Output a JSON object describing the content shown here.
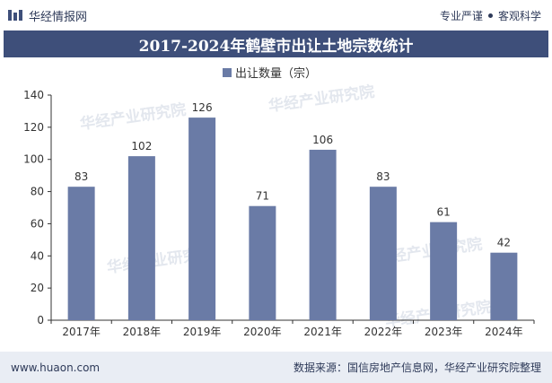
{
  "header": {
    "brand": "华经情报网",
    "slogan_left": "专业严谨",
    "slogan_right": "客观科学"
  },
  "title": "2017-2024年鹤壁市出让土地宗数统计",
  "chart_data": {
    "type": "bar",
    "title": "2017-2024年鹤壁市出让土地宗数统计",
    "categories": [
      "2017年",
      "2018年",
      "2019年",
      "2020年",
      "2021年",
      "2022年",
      "2023年",
      "2024年"
    ],
    "series": [
      {
        "name": "出让数量（宗）",
        "values": [
          83,
          102,
          126,
          71,
          106,
          83,
          61,
          42
        ]
      }
    ],
    "ylim": [
      0,
      140
    ],
    "yticks": [
      0,
      20,
      40,
      60,
      80,
      100,
      120,
      140
    ],
    "legend": "top-center",
    "grid": false,
    "colors": {
      "bar": "#6a7ba6",
      "axis": "#333333"
    }
  },
  "watermark": "华经产业研究院",
  "footer": {
    "url": "www.huaon.com",
    "source": "数据来源：国信房地产信息网，华经产业研究院整理"
  }
}
